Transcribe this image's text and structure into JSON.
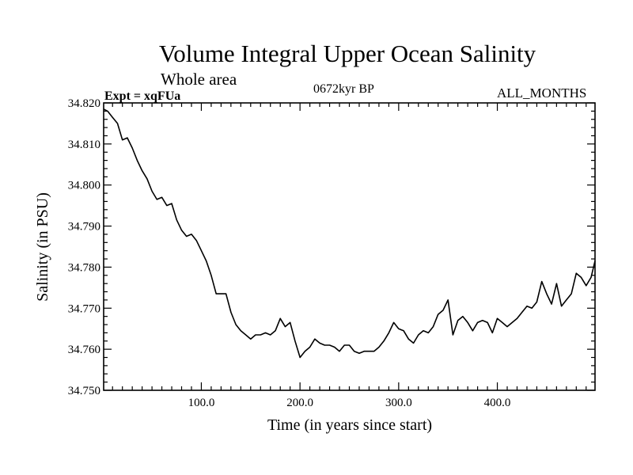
{
  "chart_data": {
    "type": "line",
    "title": "Volume Integral Upper Ocean Salinity",
    "subtitle": "Whole area",
    "left_label": "Expt = xqFUa",
    "center_label": "0672kyr BP",
    "right_label": "ALL_MONTHS",
    "xlabel": "Time (in years since start)",
    "ylabel": "Salinity (in PSU)",
    "xlim": [
      1,
      499
    ],
    "ylim": [
      34.75,
      34.82
    ],
    "x_ticks": [
      100,
      200,
      300,
      400
    ],
    "x_tick_labels": [
      "100.0",
      "200.0",
      "300.0",
      "400.0"
    ],
    "y_ticks": [
      34.75,
      34.76,
      34.77,
      34.78,
      34.79,
      34.8,
      34.81,
      34.82
    ],
    "y_tick_labels": [
      "34.750",
      "34.760",
      "34.770",
      "34.780",
      "34.790",
      "34.800",
      "34.810",
      "34.820"
    ],
    "grid": false,
    "series": [
      {
        "name": "Salinity",
        "x": [
          1,
          5,
          10,
          15,
          20,
          25,
          30,
          35,
          40,
          45,
          50,
          55,
          60,
          65,
          70,
          75,
          80,
          85,
          90,
          95,
          100,
          105,
          110,
          115,
          120,
          125,
          130,
          135,
          140,
          145,
          150,
          155,
          160,
          165,
          170,
          175,
          180,
          185,
          190,
          195,
          200,
          205,
          210,
          215,
          220,
          225,
          230,
          235,
          240,
          245,
          250,
          255,
          260,
          265,
          270,
          275,
          280,
          285,
          290,
          295,
          300,
          305,
          310,
          315,
          320,
          325,
          330,
          335,
          340,
          345,
          350,
          355,
          360,
          365,
          370,
          375,
          380,
          385,
          390,
          395,
          400,
          405,
          410,
          415,
          420,
          425,
          430,
          435,
          440,
          445,
          450,
          455,
          460,
          465,
          470,
          475,
          480,
          485,
          490,
          495,
          499
        ],
        "values": [
          34.8185,
          34.818,
          34.8165,
          34.815,
          34.811,
          34.8115,
          34.809,
          34.806,
          34.8035,
          34.8015,
          34.7985,
          34.7965,
          34.797,
          34.795,
          34.7955,
          34.7915,
          34.789,
          34.7875,
          34.788,
          34.7865,
          34.784,
          34.7815,
          34.778,
          34.7735,
          34.7735,
          34.7735,
          34.769,
          34.766,
          34.7645,
          34.7635,
          34.7625,
          34.7635,
          34.7635,
          34.764,
          34.7635,
          34.7645,
          34.7675,
          34.7655,
          34.7665,
          34.762,
          34.758,
          34.7595,
          34.7605,
          34.7625,
          34.7615,
          34.761,
          34.761,
          34.7605,
          34.7595,
          34.761,
          34.761,
          34.7595,
          34.759,
          34.7595,
          34.7595,
          34.7595,
          34.7605,
          34.762,
          34.764,
          34.7665,
          34.765,
          34.7645,
          34.7625,
          34.7615,
          34.7635,
          34.7645,
          34.764,
          34.7655,
          34.7685,
          34.7695,
          34.772,
          34.7635,
          34.767,
          34.768,
          34.7665,
          34.7645,
          34.7665,
          34.767,
          34.7665,
          34.764,
          34.7675,
          34.7665,
          34.7655,
          34.7665,
          34.7675,
          34.769,
          34.7705,
          34.77,
          34.7715,
          34.7765,
          34.7735,
          34.771,
          34.776,
          34.7705,
          34.772,
          34.7735,
          34.7785,
          34.7775,
          34.7755,
          34.7775,
          34.7815
        ]
      }
    ]
  }
}
